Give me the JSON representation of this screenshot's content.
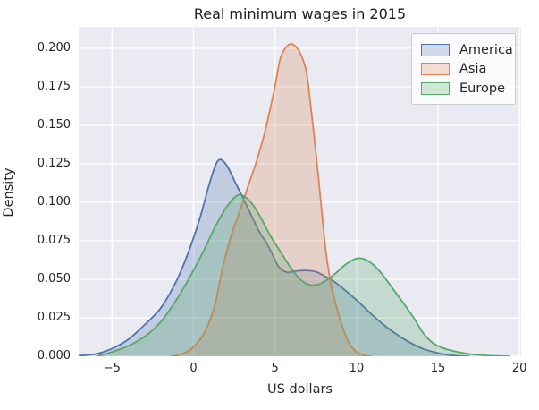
{
  "figure": {
    "background": "#ffffff",
    "axes_background": "#EAEAF2",
    "grid_color": "#ffffff",
    "text_color": "#262626"
  },
  "chart_data": {
    "type": "area",
    "subtype": "kde-density",
    "title": "Real minimum wages in 2015",
    "xlabel": "US dollars",
    "ylabel": "Density",
    "xlim": [
      -7.05,
      20.1
    ],
    "ylim": [
      0,
      0.2139
    ],
    "grid": true,
    "legend_position": "upper right",
    "x_ticks": [
      -5,
      0,
      5,
      10,
      15,
      20
    ],
    "x_tick_labels": [
      "−5",
      "0",
      "5",
      "10",
      "15",
      "20"
    ],
    "y_ticks": [
      0,
      0.025,
      0.05,
      0.075,
      0.1,
      0.125,
      0.15,
      0.175,
      0.2
    ],
    "y_tick_labels": [
      "0.000",
      "0.025",
      "0.050",
      "0.075",
      "0.100",
      "0.125",
      "0.150",
      "0.175",
      "0.200"
    ],
    "fill_opacity": 0.25,
    "line_width": 1.8,
    "series": [
      {
        "name": "America",
        "color": "#4C72B0",
        "peak": {
          "x": 1.5,
          "density": 0.127
        },
        "points": [
          [
            -7.0,
            0.0004
          ],
          [
            -6.0,
            0.0015
          ],
          [
            -5.0,
            0.005
          ],
          [
            -4.0,
            0.011
          ],
          [
            -3.0,
            0.0205
          ],
          [
            -2.0,
            0.0315
          ],
          [
            -1.0,
            0.05
          ],
          [
            -0.3,
            0.068
          ],
          [
            0.4,
            0.09
          ],
          [
            1.0,
            0.113
          ],
          [
            1.5,
            0.127
          ],
          [
            2.0,
            0.1245
          ],
          [
            2.6,
            0.112
          ],
          [
            3.0,
            0.1036
          ],
          [
            3.5,
            0.0925
          ],
          [
            4.0,
            0.0815
          ],
          [
            4.45,
            0.074
          ],
          [
            4.8,
            0.067
          ],
          [
            5.2,
            0.0585
          ],
          [
            5.7,
            0.0546
          ],
          [
            6.2,
            0.0552
          ],
          [
            6.7,
            0.0557
          ],
          [
            7.2,
            0.0555
          ],
          [
            7.6,
            0.0545
          ],
          [
            8.1,
            0.0518
          ],
          [
            8.6,
            0.0487
          ],
          [
            9.2,
            0.0437
          ],
          [
            10.0,
            0.0365
          ],
          [
            10.8,
            0.0285
          ],
          [
            11.6,
            0.021
          ],
          [
            12.4,
            0.0147
          ],
          [
            13.2,
            0.0094
          ],
          [
            14.0,
            0.0052
          ],
          [
            14.8,
            0.0026
          ],
          [
            15.6,
            0.0009
          ],
          [
            16.4,
            0.0001
          ],
          [
            16.9,
            0
          ]
        ]
      },
      {
        "name": "Asia",
        "color": "#DD8452",
        "peak": {
          "x": 5.95,
          "density": 0.2028
        },
        "points": [
          [
            -1.35,
            0
          ],
          [
            -0.7,
            0.0015
          ],
          [
            0.0,
            0.006
          ],
          [
            0.7,
            0.016
          ],
          [
            1.3,
            0.033
          ],
          [
            1.8,
            0.058
          ],
          [
            2.3,
            0.078
          ],
          [
            2.8,
            0.093
          ],
          [
            3.3,
            0.109
          ],
          [
            3.8,
            0.1245
          ],
          [
            4.3,
            0.1425
          ],
          [
            4.7,
            0.1605
          ],
          [
            5.0,
            0.1755
          ],
          [
            5.3,
            0.1925
          ],
          [
            5.6,
            0.1995
          ],
          [
            5.95,
            0.2028
          ],
          [
            6.35,
            0.2002
          ],
          [
            6.7,
            0.193
          ],
          [
            6.95,
            0.1835
          ],
          [
            7.15,
            0.166
          ],
          [
            7.4,
            0.143
          ],
          [
            7.65,
            0.1175
          ],
          [
            7.9,
            0.0905
          ],
          [
            8.15,
            0.0655
          ],
          [
            8.5,
            0.0435
          ],
          [
            9.0,
            0.0235
          ],
          [
            9.5,
            0.0095
          ],
          [
            10.0,
            0.0028
          ],
          [
            10.55,
            0.0003
          ],
          [
            10.9,
            0
          ]
        ]
      },
      {
        "name": "Europe",
        "color": "#55A868",
        "peak": {
          "x": 2.7,
          "density": 0.1046
        },
        "points": [
          [
            -5.9,
            0
          ],
          [
            -5.0,
            0.0028
          ],
          [
            -4.0,
            0.0068
          ],
          [
            -3.0,
            0.0128
          ],
          [
            -2.0,
            0.0225
          ],
          [
            -1.0,
            0.0375
          ],
          [
            -0.2,
            0.052
          ],
          [
            0.6,
            0.068
          ],
          [
            1.3,
            0.0835
          ],
          [
            2.0,
            0.0965
          ],
          [
            2.7,
            0.1046
          ],
          [
            3.2,
            0.1032
          ],
          [
            3.7,
            0.0975
          ],
          [
            4.2,
            0.0885
          ],
          [
            4.7,
            0.0785
          ],
          [
            5.3,
            0.0684
          ],
          [
            5.9,
            0.0585
          ],
          [
            6.4,
            0.0515
          ],
          [
            6.9,
            0.0472
          ],
          [
            7.3,
            0.0461
          ],
          [
            7.7,
            0.0468
          ],
          [
            8.2,
            0.0497
          ],
          [
            8.7,
            0.0537
          ],
          [
            9.2,
            0.0585
          ],
          [
            9.7,
            0.0622
          ],
          [
            10.1,
            0.0637
          ],
          [
            10.5,
            0.063
          ],
          [
            11.0,
            0.0597
          ],
          [
            11.5,
            0.0543
          ],
          [
            12.0,
            0.0472
          ],
          [
            12.5,
            0.04
          ],
          [
            13.0,
            0.0327
          ],
          [
            13.6,
            0.0235
          ],
          [
            14.1,
            0.015
          ],
          [
            14.7,
            0.0085
          ],
          [
            15.4,
            0.005
          ],
          [
            16.2,
            0.0028
          ],
          [
            17.0,
            0.0014
          ],
          [
            17.8,
            0.0006
          ],
          [
            18.6,
            0.0002
          ],
          [
            19.4,
            0
          ]
        ]
      }
    ],
    "legend_entries": [
      {
        "label": "America",
        "color": "#4C72B0"
      },
      {
        "label": "Asia",
        "color": "#DD8452"
      },
      {
        "label": "Europe",
        "color": "#55A868"
      }
    ]
  }
}
